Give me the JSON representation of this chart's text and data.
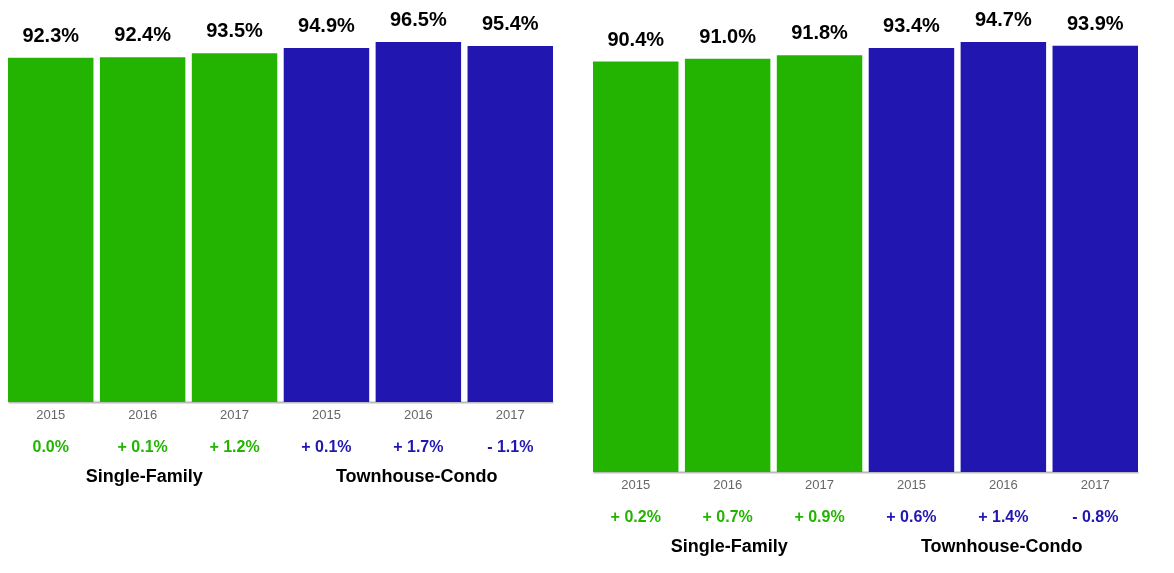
{
  "chart_data": [
    {
      "type": "bar",
      "categories": [
        "2015",
        "2016",
        "2017",
        "2015",
        "2016",
        "2017"
      ],
      "values": [
        92.3,
        92.4,
        93.5,
        94.9,
        96.5,
        95.4
      ],
      "colors": [
        "#22b400",
        "#22b400",
        "#22b400",
        "#2117b0",
        "#2117b0",
        "#2117b0"
      ],
      "value_labels": [
        "92.3%",
        "92.4%",
        "93.5%",
        "94.9%",
        "96.5%",
        "95.4%"
      ],
      "annotations": [
        "0.0%",
        "+ 0.1%",
        "+ 1.2%",
        "+ 0.1%",
        "+ 1.7%",
        "- 1.1%",
        "Single-Family",
        "Townhouse-Condo"
      ]
    },
    {
      "type": "bar",
      "categories": [
        "2015",
        "2016",
        "2017",
        "2015",
        "2016",
        "2017"
      ],
      "values": [
        90.4,
        91.0,
        91.8,
        93.4,
        94.7,
        93.9
      ],
      "colors": [
        "#22b400",
        "#22b400",
        "#22b400",
        "#2117b0",
        "#2117b0",
        "#2117b0"
      ],
      "value_labels": [
        "90.4%",
        "91.0%",
        "91.8%",
        "93.4%",
        "94.7%",
        "93.9%"
      ],
      "annotations": [
        "+ 0.2%",
        "+ 0.7%",
        "+ 0.9%",
        "+ 0.6%",
        "+ 1.4%",
        "- 0.8%",
        "Single-Family",
        "Townhouse-Condo"
      ]
    }
  ]
}
